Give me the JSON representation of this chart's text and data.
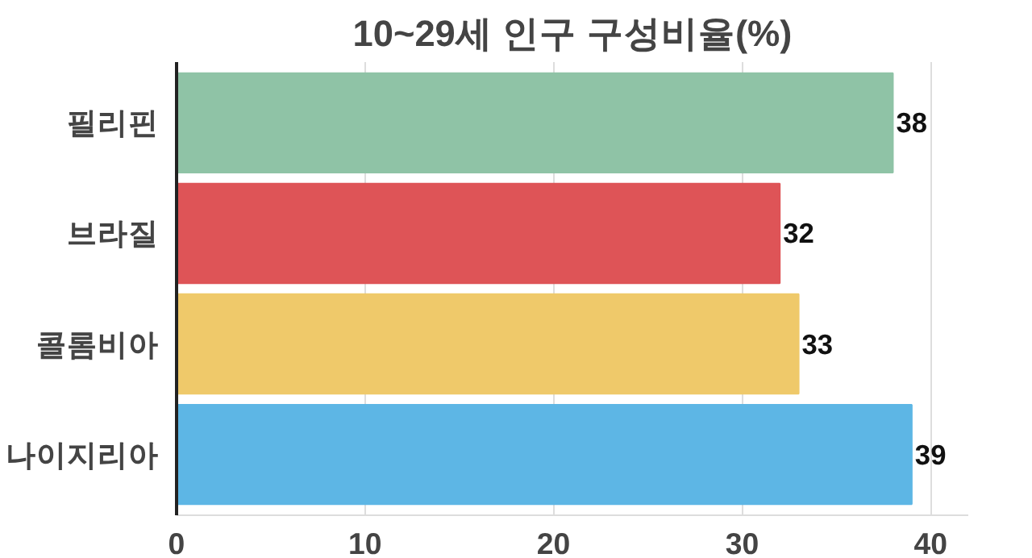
{
  "chart_data": {
    "type": "bar",
    "orientation": "horizontal",
    "title": "10~29세 인구 구성비율(%)",
    "categories": [
      "필리핀",
      "브라질",
      "콜롬비아",
      "나이지리아"
    ],
    "values": [
      38,
      32,
      33,
      39
    ],
    "colors": [
      "#8fc3a6",
      "#de5457",
      "#efc96a",
      "#5db6e5"
    ],
    "xlim": [
      0,
      42
    ],
    "xticks": [
      0,
      10,
      20,
      30,
      40
    ],
    "grid": "x",
    "data_labels": true
  }
}
